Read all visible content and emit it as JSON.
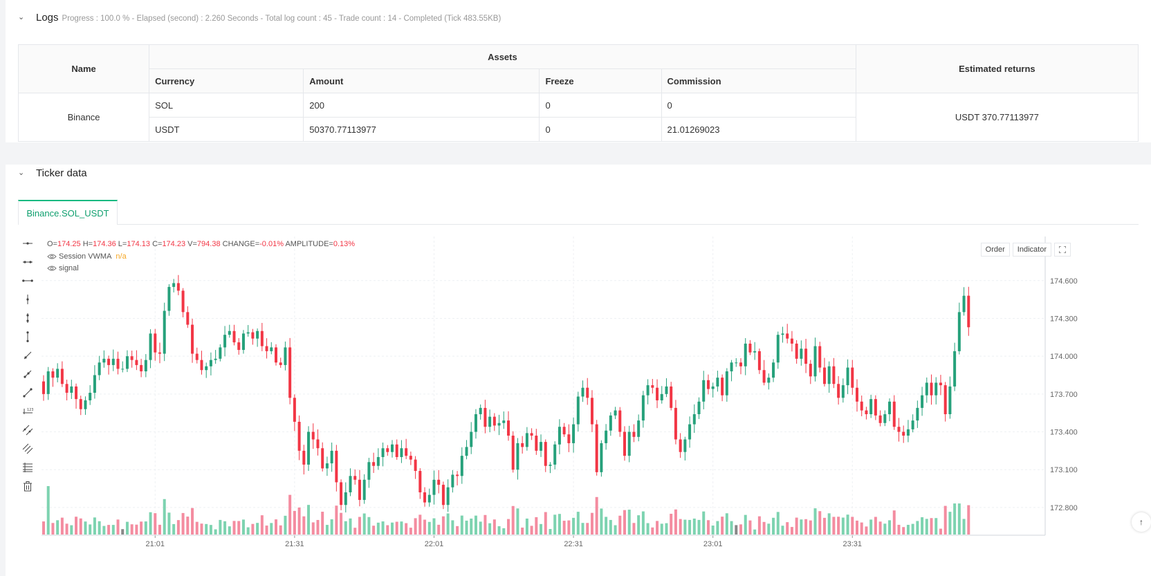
{
  "logs": {
    "title": "Logs",
    "meta": "Progress : 100.0 % - Elapsed (second) : 2.260  Seconds - Total log count : 45 - Trade count : 14 - Completed (Tick 483.55KB)",
    "table": {
      "headers": {
        "name": "Name",
        "assets": "Assets",
        "estimated": "Estimated returns"
      },
      "subheaders": [
        "Currency",
        "Amount",
        "Freeze",
        "Commission"
      ],
      "exchange": "Binance",
      "rows": [
        {
          "currency": "SOL",
          "amount": "200",
          "freeze": "0",
          "commission": "0"
        },
        {
          "currency": "USDT",
          "amount": "50370.77113977",
          "freeze": "0",
          "commission": "21.01269023"
        }
      ],
      "estimated_returns": "USDT 370.77113977"
    }
  },
  "ticker": {
    "title": "Ticker data",
    "tab": "Binance.SOL_USDT",
    "ohlc": {
      "o_label": "O=",
      "o": "174.25",
      "h_label": "H=",
      "h": "174.36",
      "l_label": "L=",
      "l": "174.13",
      "c_label": "C=",
      "c": "174.23",
      "v_label": "V=",
      "v": "794.38",
      "change_label": "CHANGE=",
      "change": "-0.01%",
      "amp_label": "AMPLITUDE=",
      "amp": "0.13%"
    },
    "legend": [
      {
        "label": "Session VWMA",
        "value": "n/a"
      },
      {
        "label": "signal",
        "value": ""
      }
    ],
    "buttons": {
      "order": "Order",
      "indicator": "Indicator"
    },
    "tools": [
      "horizontal-line-icon",
      "horizontal-ray-icon",
      "horizontal-segment-icon",
      "vertical-line-icon",
      "vertical-ray-icon",
      "vertical-segment-icon",
      "trend-line-icon",
      "ray-line-icon",
      "extended-line-icon",
      "price-label-icon",
      "parallel-channel-icon",
      "fib-channel-icon",
      "fib-retracement-icon",
      "delete-icon"
    ]
  },
  "chart_data": {
    "type": "candlestick",
    "symbol": "Binance.SOL_USDT",
    "colors": {
      "up": "#26a17b",
      "down": "#f23645",
      "volume_up": "#7dd3b0",
      "volume_down": "#f48ca0",
      "volume_neutral": "#888888"
    },
    "y_ticks": [
      174.6,
      174.3,
      174.0,
      173.7,
      173.4,
      173.1,
      172.8
    ],
    "ylim": [
      172.58,
      174.95
    ],
    "x_ticks": [
      "21:01",
      "21:31",
      "22:01",
      "22:31",
      "23:01",
      "23:31"
    ],
    "x_tick_index": [
      24,
      54,
      84,
      114,
      144,
      174
    ],
    "closes": [
      173.7,
      173.88,
      173.83,
      173.9,
      173.78,
      173.71,
      173.76,
      173.66,
      173.58,
      173.65,
      173.71,
      173.85,
      173.95,
      173.98,
      173.93,
      173.98,
      173.9,
      173.9,
      174.0,
      173.97,
      173.93,
      173.88,
      173.97,
      174.18,
      174.03,
      174.02,
      174.36,
      174.55,
      174.58,
      174.52,
      174.35,
      174.25,
      174.02,
      173.97,
      173.89,
      173.92,
      173.97,
      173.98,
      174.07,
      174.17,
      174.2,
      174.11,
      174.05,
      174.18,
      174.19,
      174.14,
      174.2,
      174.08,
      174.04,
      174.07,
      173.95,
      173.93,
      174.07,
      173.67,
      173.48,
      173.25,
      173.14,
      173.4,
      173.34,
      173.27,
      173.11,
      173.15,
      173.25,
      173.0,
      172.82,
      172.92,
      173.05,
      173.02,
      172.86,
      173.02,
      173.16,
      173.13,
      173.2,
      173.27,
      173.24,
      173.3,
      173.2,
      173.27,
      173.21,
      173.18,
      173.09,
      172.92,
      172.84,
      172.9,
      173.02,
      172.98,
      172.82,
      172.96,
      173.06,
      173.05,
      173.21,
      173.28,
      173.4,
      173.54,
      173.59,
      173.44,
      173.52,
      173.45,
      173.47,
      173.49,
      173.37,
      173.1,
      173.31,
      173.28,
      173.39,
      173.37,
      173.25,
      173.32,
      173.13,
      173.14,
      173.3,
      173.44,
      173.38,
      173.31,
      173.46,
      173.68,
      173.75,
      173.67,
      173.46,
      173.08,
      173.31,
      173.41,
      173.53,
      173.57,
      173.4,
      173.21,
      173.4,
      173.36,
      173.49,
      173.69,
      173.77,
      173.75,
      173.65,
      173.7,
      173.76,
      173.59,
      173.34,
      173.24,
      173.34,
      173.46,
      173.54,
      173.64,
      173.81,
      173.74,
      173.76,
      173.83,
      173.69,
      173.88,
      173.95,
      173.95,
      173.92,
      174.1,
      174.03,
      174.04,
      173.89,
      173.79,
      173.83,
      173.95,
      174.17,
      174.18,
      174.14,
      174.1,
      173.98,
      174.06,
      173.94,
      173.84,
      174.08,
      173.91,
      173.78,
      173.92,
      173.78,
      173.67,
      173.77,
      173.91,
      173.75,
      173.64,
      173.57,
      173.54,
      173.66,
      173.53,
      173.47,
      173.54,
      173.64,
      173.44,
      173.4,
      173.37,
      173.42,
      173.49,
      173.59,
      173.69,
      173.79,
      173.69,
      173.79,
      173.77,
      173.54,
      173.76,
      174.04,
      174.35,
      174.48,
      174.23
    ]
  }
}
